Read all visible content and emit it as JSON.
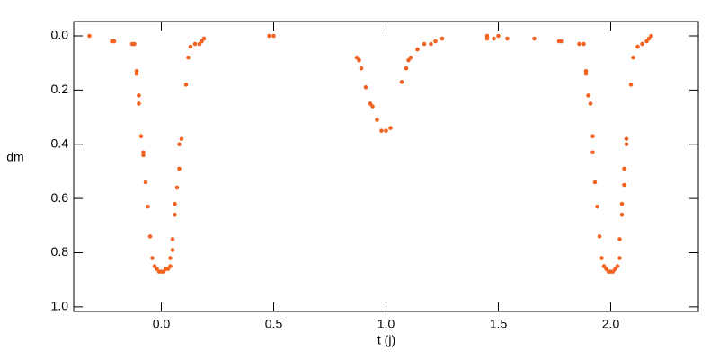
{
  "chart_data": {
    "type": "scatter",
    "x_label": "t (j)",
    "y_label": "dm",
    "color": "#f26322",
    "xlim": [
      -0.39,
      2.39
    ],
    "ylim": [
      -0.053,
      1.017
    ],
    "y_inverted": true,
    "xticks": [
      {
        "value": 0,
        "label": "0.0"
      },
      {
        "value": 0.5,
        "label": "0.5"
      },
      {
        "value": 1,
        "label": "1.0"
      },
      {
        "value": 1.5,
        "label": "1.5"
      },
      {
        "value": 2,
        "label": "2.0"
      }
    ],
    "yticks": [
      {
        "value": 0,
        "label": "0.0"
      },
      {
        "value": 0.2,
        "label": "0.2"
      },
      {
        "value": 0.4,
        "label": "0.4"
      },
      {
        "value": 0.6,
        "label": "0.6"
      },
      {
        "value": 0.8,
        "label": "0.8"
      },
      {
        "value": 1,
        "label": "1.0"
      }
    ],
    "x": [
      -0.32,
      -0.22,
      -0.21,
      -0.13,
      -0.12,
      -0.11,
      -0.11,
      -0.1,
      -0.1,
      -0.09,
      -0.08,
      -0.08,
      -0.07,
      -0.06,
      -0.05,
      -0.04,
      -0.03,
      -0.02,
      -0.01,
      0.0,
      0.01,
      0.02,
      0.03,
      0.04,
      0.04,
      0.05,
      0.05,
      0.06,
      0.06,
      0.07,
      0.08,
      0.08,
      0.09,
      0.11,
      0.12,
      0.13,
      0.15,
      0.17,
      0.18,
      0.19,
      0.48,
      0.5,
      0.87,
      0.88,
      0.89,
      0.91,
      0.93,
      0.94,
      0.96,
      0.98,
      1.0,
      1.02,
      1.07,
      1.09,
      1.1,
      1.11,
      1.14,
      1.17,
      1.2,
      1.22,
      1.25,
      1.45,
      1.45,
      1.48,
      1.5,
      1.54,
      1.66,
      1.77,
      1.78,
      1.86,
      1.88,
      1.89,
      1.89,
      1.9,
      1.91,
      1.92,
      1.92,
      1.93,
      1.94,
      1.95,
      1.96,
      1.97,
      1.98,
      1.99,
      2.0,
      2.01,
      2.02,
      2.03,
      2.04,
      2.04,
      2.05,
      2.05,
      2.06,
      2.06,
      2.07,
      2.07,
      2.09,
      2.1,
      2.12,
      2.14,
      2.16,
      2.17,
      2.18
    ],
    "y": [
      0.0,
      0.02,
      0.02,
      0.03,
      0.03,
      0.13,
      0.14,
      0.22,
      0.25,
      0.37,
      0.43,
      0.44,
      0.54,
      0.63,
      0.74,
      0.82,
      0.85,
      0.86,
      0.87,
      0.87,
      0.87,
      0.86,
      0.86,
      0.85,
      0.82,
      0.79,
      0.75,
      0.66,
      0.62,
      0.56,
      0.49,
      0.4,
      0.38,
      0.18,
      0.08,
      0.04,
      0.03,
      0.03,
      0.02,
      0.01,
      0.0,
      0.0,
      0.08,
      0.09,
      0.12,
      0.19,
      0.25,
      0.26,
      0.31,
      0.35,
      0.35,
      0.34,
      0.17,
      0.12,
      0.09,
      0.08,
      0.05,
      0.03,
      0.03,
      0.02,
      0.01,
      0.0,
      0.01,
      0.01,
      0.0,
      0.01,
      0.01,
      0.02,
      0.02,
      0.03,
      0.03,
      0.13,
      0.14,
      0.22,
      0.25,
      0.37,
      0.43,
      0.54,
      0.63,
      0.74,
      0.82,
      0.85,
      0.86,
      0.87,
      0.87,
      0.87,
      0.86,
      0.85,
      0.82,
      0.75,
      0.66,
      0.62,
      0.55,
      0.49,
      0.4,
      0.38,
      0.18,
      0.08,
      0.04,
      0.03,
      0.02,
      0.01,
      0.0
    ]
  }
}
